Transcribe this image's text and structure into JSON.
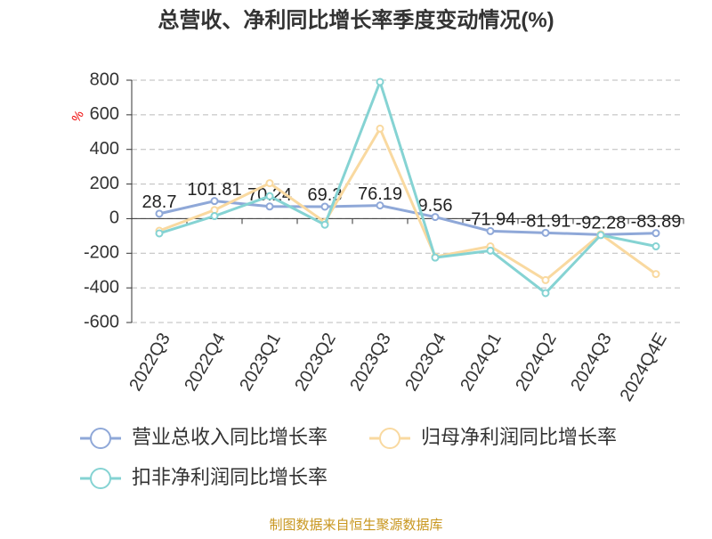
{
  "chart_data": {
    "type": "line",
    "title": "总营收、净利同比增长率季度变动情况(%)",
    "y_label": "%",
    "source": "制图数据来自恒生聚源数据库",
    "categories": [
      "2022Q3",
      "2022Q4",
      "2023Q1",
      "2023Q2",
      "2023Q3",
      "2023Q4",
      "2024Q1",
      "2024Q2",
      "2024Q3",
      "2024Q4E"
    ],
    "series": [
      {
        "name": "营业总收入同比增长率",
        "color": "#8fa8d8",
        "data_labels": true,
        "values": [
          28.7,
          101.81,
          70.24,
          69.3,
          76.19,
          9.56,
          -71.94,
          -81.91,
          -92.28,
          -83.89
        ]
      },
      {
        "name": "归母净利润同比增长率",
        "color": "#f9d9a0",
        "data_labels": false,
        "values": [
          -70,
          50,
          205,
          -20,
          520,
          -220,
          -160,
          -355,
          -90,
          -320
        ]
      },
      {
        "name": "扣非净利润同比增长率",
        "color": "#85d3d3",
        "data_labels": false,
        "values": [
          -85,
          15,
          130,
          -35,
          790,
          -225,
          -185,
          -430,
          -95,
          -160
        ]
      }
    ],
    "ylim": [
      -600,
      800
    ],
    "yticks": [
      -600,
      -400,
      -200,
      0,
      200,
      400,
      600,
      800
    ],
    "grid": true,
    "legend": "bottom"
  }
}
